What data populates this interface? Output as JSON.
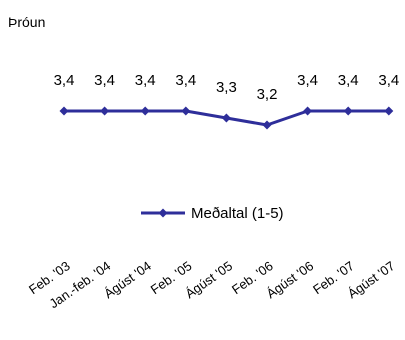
{
  "chart_data": {
    "type": "line",
    "title": "Þróun",
    "categories": [
      "Feb. '03",
      "Jan.-feb. '04",
      "Ágúst '04",
      "Feb. '05",
      "Ágúst '05",
      "Feb. '06",
      "Ágúst '06",
      "Feb. '07",
      "Ágúst '07"
    ],
    "series": [
      {
        "name": "Meðaltal (1-5)",
        "values": [
          3.4,
          3.4,
          3.4,
          3.4,
          3.3,
          3.2,
          3.4,
          3.4,
          3.4
        ],
        "labels": [
          "3,4",
          "3,4",
          "3,4",
          "3,4",
          "3,3",
          "3,2",
          "3,4",
          "3,4",
          "3,4"
        ],
        "color": "#2e2e9a"
      }
    ],
    "legend_position": "bottom-right",
    "grid": false
  }
}
